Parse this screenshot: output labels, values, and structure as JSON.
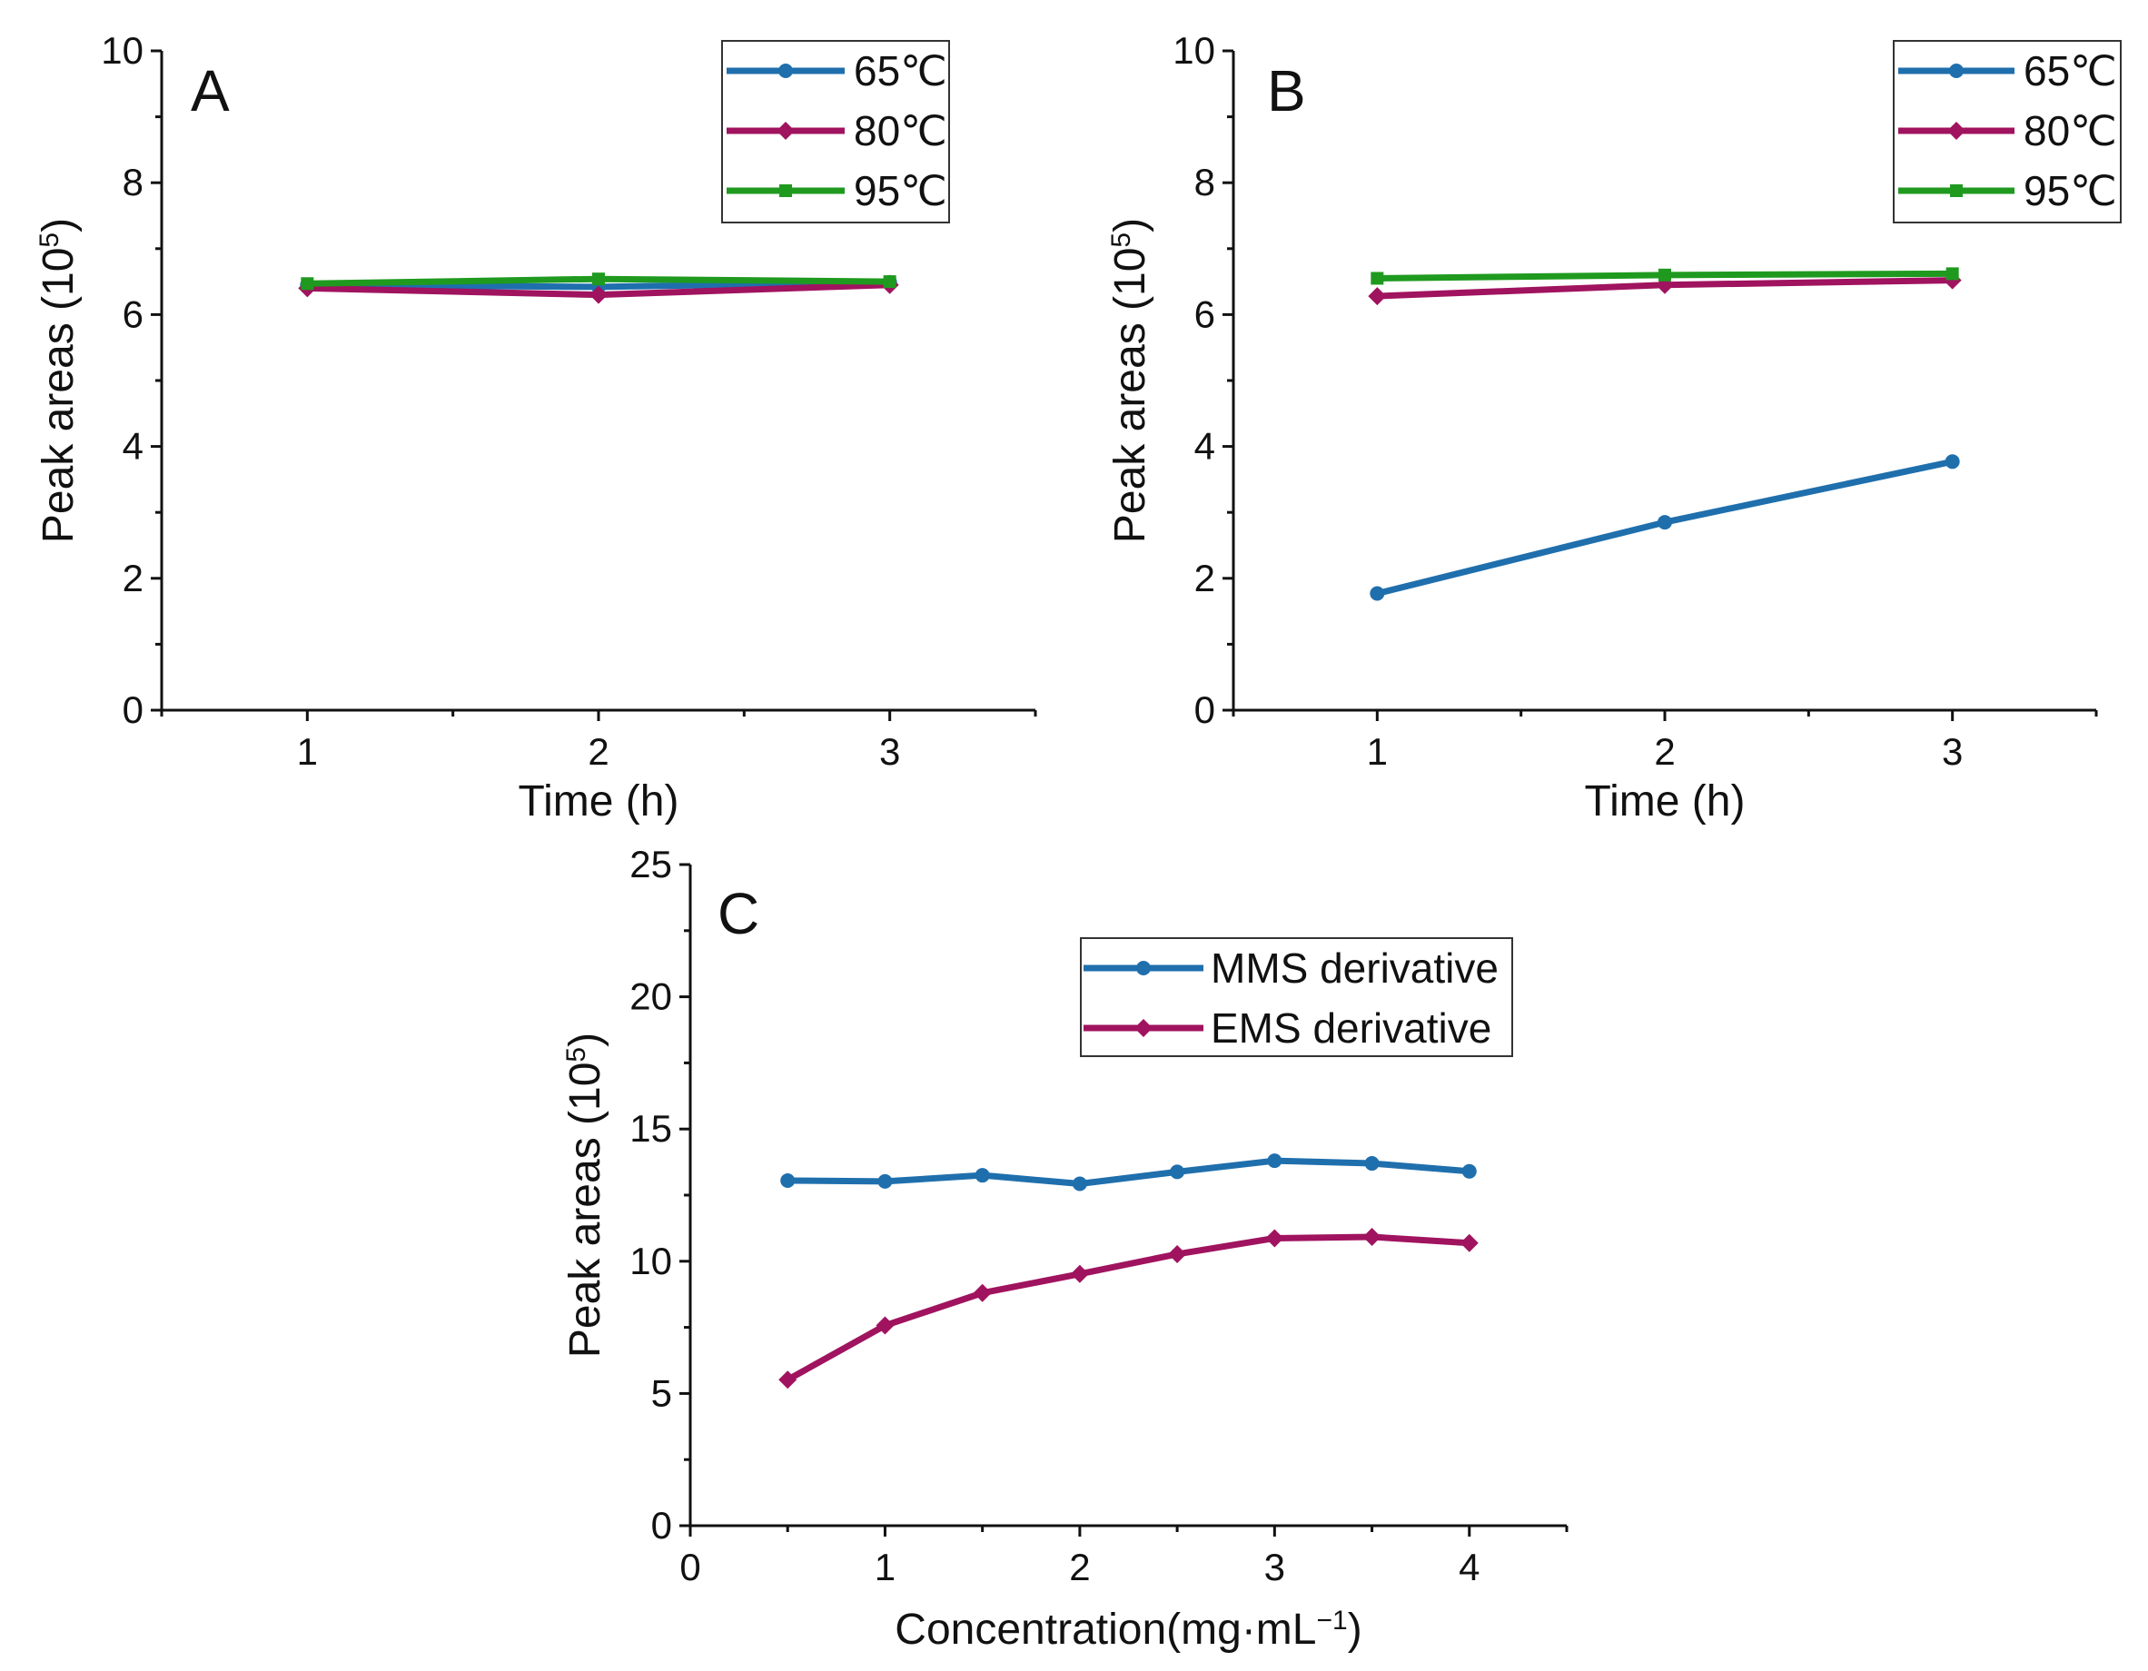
{
  "colors": {
    "blue": "#1f6fad",
    "magenta": "#a0135f",
    "green": "#1f9a1f",
    "axis": "#111111"
  },
  "chart_data": [
    {
      "id": "A",
      "type": "line",
      "panel_label": "A",
      "xlabel": "Time (h)",
      "ylabel": "Peak areas (10",
      "ylabel_sup": "5",
      "ylabel_close": ")",
      "xlim": [
        0.5,
        3.5
      ],
      "ylim": [
        0,
        10
      ],
      "xticks": [
        1,
        2,
        3
      ],
      "yticks": [
        0,
        2,
        4,
        6,
        8,
        10
      ],
      "x": [
        1,
        2,
        3
      ],
      "legend_position": "top-right",
      "series": [
        {
          "name": "65℃",
          "color": "#1f6fad",
          "marker": "circle",
          "values": [
            6.45,
            6.42,
            6.49
          ]
        },
        {
          "name": "80℃",
          "color": "#a0135f",
          "marker": "diamond",
          "values": [
            6.4,
            6.3,
            6.45
          ]
        },
        {
          "name": "95℃",
          "color": "#1f9a1f",
          "marker": "square",
          "values": [
            6.47,
            6.54,
            6.5
          ]
        }
      ]
    },
    {
      "id": "B",
      "type": "line",
      "panel_label": "B",
      "xlabel": "Time (h)",
      "ylabel": "Peak areas (10",
      "ylabel_sup": "5",
      "ylabel_close": ")",
      "xlim": [
        0.5,
        3.5
      ],
      "ylim": [
        0,
        10
      ],
      "xticks": [
        1,
        2,
        3
      ],
      "yticks": [
        0,
        2,
        4,
        6,
        8,
        10
      ],
      "x": [
        1,
        2,
        3
      ],
      "legend_position": "top-right",
      "series": [
        {
          "name": "65℃",
          "color": "#1f6fad",
          "marker": "circle",
          "values": [
            1.77,
            2.85,
            3.77
          ]
        },
        {
          "name": "80℃",
          "color": "#a0135f",
          "marker": "diamond",
          "values": [
            6.28,
            6.45,
            6.52
          ]
        },
        {
          "name": "95℃",
          "color": "#1f9a1f",
          "marker": "square",
          "values": [
            6.55,
            6.6,
            6.62
          ]
        }
      ]
    },
    {
      "id": "C",
      "type": "line",
      "panel_label": "C",
      "xlabel": "Concentration(mg·mL",
      "xlabel_sup": "−1",
      "xlabel_close": ")",
      "ylabel": "Peak areas (10",
      "ylabel_sup": "5",
      "ylabel_close": ")",
      "xlim": [
        0,
        4.5
      ],
      "ylim": [
        0,
        25
      ],
      "xticks": [
        0,
        1,
        2,
        3,
        4
      ],
      "yticks": [
        0,
        5,
        10,
        15,
        20,
        25
      ],
      "x": [
        0.5,
        1,
        1.5,
        2,
        2.5,
        3,
        3.5,
        4
      ],
      "legend_position": "top-center",
      "series": [
        {
          "name": "MMS derivative",
          "color": "#1f6fad",
          "marker": "circle",
          "values": [
            13.05,
            13.02,
            13.25,
            12.93,
            13.38,
            13.8,
            13.7,
            13.4
          ]
        },
        {
          "name": "EMS derivative",
          "color": "#a0135f",
          "marker": "diamond",
          "values": [
            5.52,
            7.57,
            8.8,
            9.52,
            10.27,
            10.87,
            10.92,
            10.69
          ]
        }
      ]
    }
  ]
}
